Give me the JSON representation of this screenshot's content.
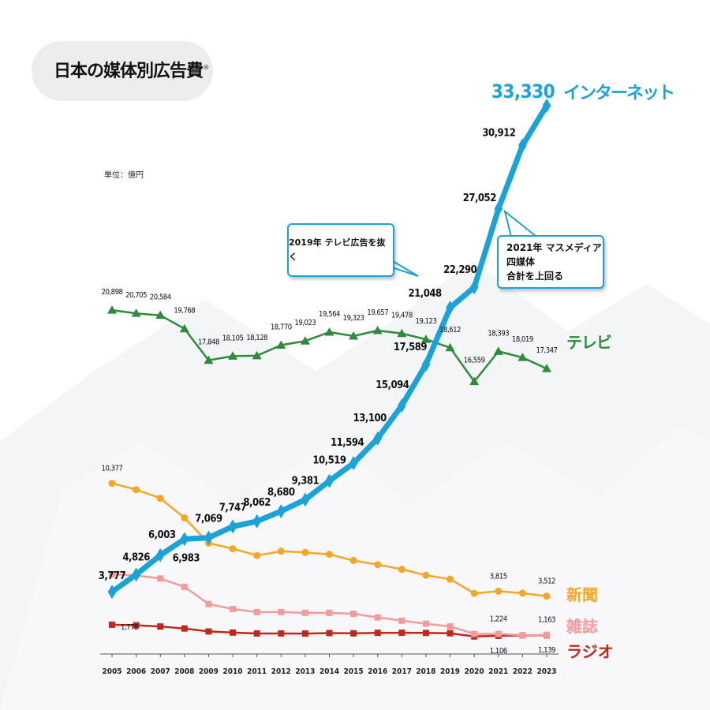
{
  "title": "日本の媒体別広告費",
  "title_note": "※",
  "unit": "単位：億円",
  "callouts": {
    "c2019": "2019年 テレビ広告を抜く",
    "c2021_line1": "2021年 マスメディア四媒体",
    "c2021_line2": "合計を上回る"
  },
  "chart_data": {
    "type": "line",
    "x": [
      2005,
      2006,
      2007,
      2008,
      2009,
      2010,
      2011,
      2012,
      2013,
      2014,
      2015,
      2016,
      2017,
      2018,
      2019,
      2020,
      2021,
      2022,
      2023
    ],
    "ylim": [
      0,
      35000
    ],
    "grid": false,
    "series": [
      {
        "name": "インターネット",
        "color": "#1aa3d9",
        "marker": "diamond",
        "values": [
          3777,
          4826,
          6003,
          6983,
          7069,
          7747,
          8062,
          8680,
          9381,
          10519,
          11594,
          13100,
          15094,
          17589,
          21048,
          22290,
          27052,
          30912,
          33330
        ],
        "labels": [
          "3,777",
          "4,826",
          "6,003",
          "6,983",
          "7,069",
          "7,747",
          "8,062",
          "8,680",
          "9,381",
          "10,519",
          "11,594",
          "13,100",
          "15,094",
          "17,589",
          "21,048",
          "22,290",
          "27,052",
          "30,912",
          "33,330"
        ]
      },
      {
        "name": "テレビ",
        "color": "#2e8b3a",
        "marker": "triangle",
        "values": [
          20898,
          20705,
          20584,
          19768,
          17848,
          18105,
          18128,
          18770,
          19023,
          19564,
          19323,
          19657,
          19478,
          19123,
          18612,
          16559,
          18393,
          18019,
          17347
        ],
        "labels": [
          "20,898",
          "20,705",
          "20,584",
          "19,768",
          "17,848",
          "18,105",
          "18,128",
          "18,770",
          "19,023",
          "19,564",
          "19,323",
          "19,657",
          "19,478",
          "19,123",
          "18,612",
          "16,559",
          "18,393",
          "18,019",
          "17,347"
        ]
      },
      {
        "name": "新聞",
        "color": "#f5a623",
        "marker": "circle",
        "values": [
          10377,
          9986,
          9462,
          8276,
          6739,
          6396,
          5990,
          6242,
          6170,
          6057,
          5679,
          5431,
          5147,
          4784,
          4547,
          3688,
          3815,
          3697,
          3512
        ],
        "labels": [
          "10,377",
          "",
          "",
          "",
          "",
          "",
          "",
          "",
          "",
          "",
          "",
          "",
          "",
          "",
          "",
          "",
          "3,815",
          "",
          "3,512"
        ]
      },
      {
        "name": "雑誌",
        "color": "#f39a9c",
        "marker": "square",
        "values": [
          4842,
          4777,
          4585,
          4078,
          3034,
          2733,
          2542,
          2551,
          2499,
          2500,
          2443,
          2223,
          2023,
          1841,
          1675,
          1223,
          1224,
          1140,
          1163
        ],
        "labels": [
          "",
          "",
          "",
          "",
          "",
          "",
          "",
          "",
          "",
          "",
          "",
          "",
          "",
          "",
          "",
          "",
          "1,224",
          "",
          "1,163"
        ]
      },
      {
        "name": "ラジオ",
        "color": "#c0281b",
        "marker": "square",
        "values": [
          1778,
          1744,
          1671,
          1549,
          1370,
          1299,
          1247,
          1246,
          1243,
          1272,
          1254,
          1285,
          1290,
          1278,
          1260,
          1066,
          1106,
          1129,
          1139
        ],
        "labels": [
          "1,778",
          "",
          "",
          "",
          "",
          "",
          "",
          "",
          "",
          "",
          "",
          "",
          "",
          "",
          "",
          "",
          "1,106",
          "",
          "1,139"
        ]
      }
    ]
  }
}
